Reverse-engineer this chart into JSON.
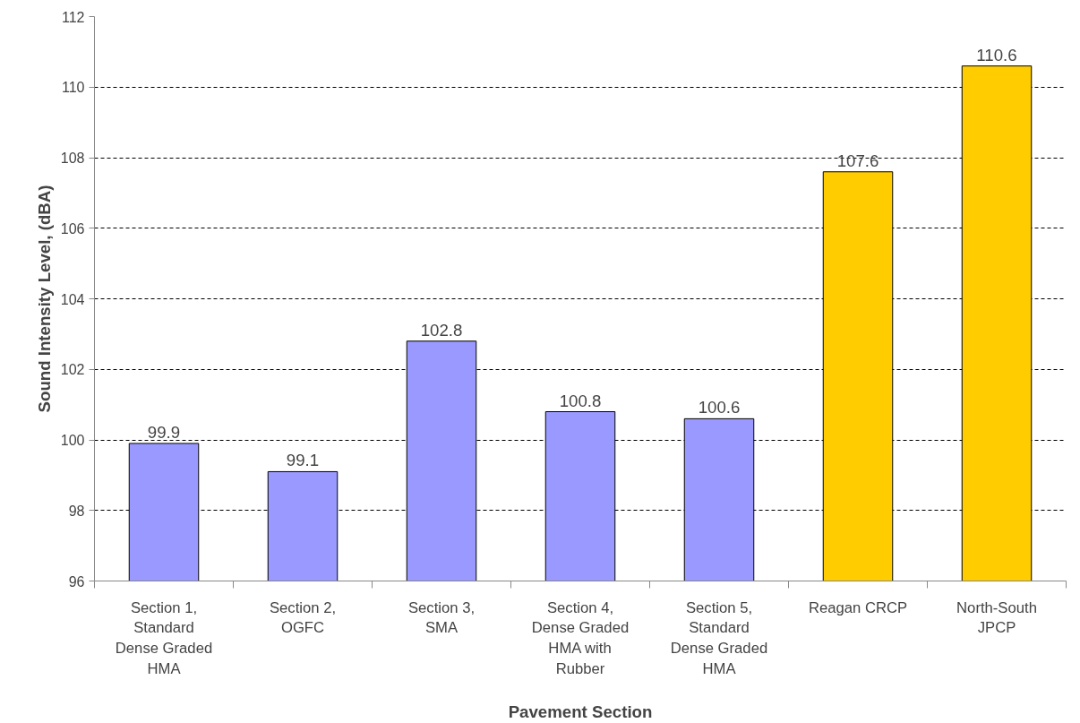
{
  "chart_data": {
    "type": "bar",
    "xlabel": "Pavement Section",
    "ylabel": "Sound Intensity Level, (dBA)",
    "categories": [
      "Section 1, Standard Dense Graded HMA",
      "Section 2, OGFC",
      "Section 3, SMA",
      "Section 4, Dense Graded HMA with Rubber",
      "Section 5, Standard Dense Graded HMA",
      "Reagan CRCP",
      "North-South JPCP"
    ],
    "values": [
      99.9,
      99.1,
      102.8,
      100.8,
      100.6,
      107.6,
      110.6
    ],
    "colors": [
      "#9999ff",
      "#9999ff",
      "#9999ff",
      "#9999ff",
      "#9999ff",
      "#ffcc00",
      "#ffcc00"
    ],
    "ylim": [
      96,
      112
    ],
    "yticks": [
      96,
      98,
      100,
      102,
      104,
      106,
      108,
      110,
      112
    ],
    "grid": "y",
    "data_labels": true
  }
}
